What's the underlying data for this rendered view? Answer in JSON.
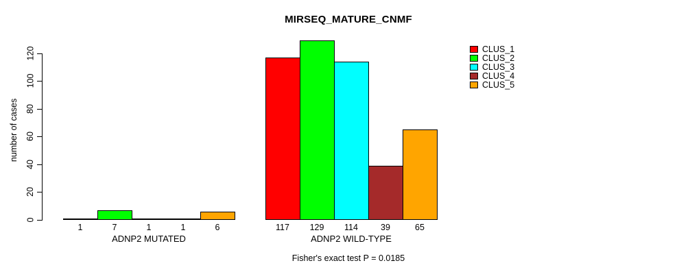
{
  "chart_data": {
    "type": "bar",
    "title": "MIRSEQ_MATURE_CNMF",
    "ylabel": "number of cases",
    "xlabel": "",
    "footnote": "Fisher's exact test P = 0.0185",
    "grid": false,
    "legend_position": "top-right",
    "ylim": [
      0,
      129
    ],
    "yticks": [
      0,
      20,
      40,
      60,
      80,
      100,
      120
    ],
    "categories": [
      "ADNP2 MUTATED",
      "ADNP2 WILD-TYPE"
    ],
    "series": [
      {
        "name": "CLUS_1",
        "color": "#FF0000",
        "values": [
          1,
          117
        ]
      },
      {
        "name": "CLUS_2",
        "color": "#00FF00",
        "values": [
          7,
          129
        ]
      },
      {
        "name": "CLUS_3",
        "color": "#00FFFF",
        "values": [
          1,
          114
        ]
      },
      {
        "name": "CLUS_4",
        "color": "#A52A2A",
        "values": [
          1,
          39
        ]
      },
      {
        "name": "CLUS_5",
        "color": "#FFA500",
        "values": [
          6,
          65
        ]
      }
    ],
    "bar_value_labels": [
      [
        "1",
        "7",
        "1",
        "1",
        "6"
      ],
      [
        "117",
        "129",
        "114",
        "39",
        "65"
      ]
    ]
  },
  "colors": {
    "background": "#FFFFFF",
    "axis": "#000000",
    "text": "#000000"
  }
}
